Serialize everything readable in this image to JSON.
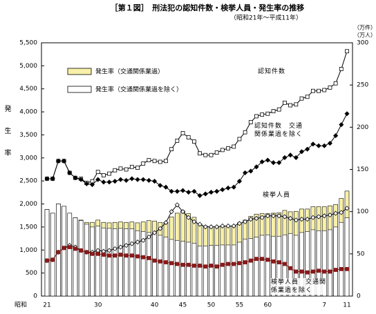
{
  "chart_data": {
    "type": "combo",
    "title": "［第１図］　刑法犯の認知件数・検挙人員・発生率の推移",
    "subtitle": "（昭和21年～平成11年）",
    "y_label": "発生率",
    "y2_labels": [
      "（万件）",
      "（万人）"
    ],
    "x_era_label": "昭和",
    "categories": [
      "21",
      null,
      null,
      null,
      null,
      null,
      null,
      null,
      null,
      "30",
      null,
      null,
      null,
      null,
      null,
      null,
      null,
      null,
      null,
      "40",
      null,
      null,
      null,
      null,
      "45",
      null,
      null,
      null,
      null,
      "50",
      null,
      null,
      null,
      null,
      "55",
      null,
      null,
      null,
      null,
      "60",
      null,
      null,
      null,
      null,
      null,
      null,
      null,
      null,
      null,
      "7",
      null,
      null,
      null,
      "11"
    ],
    "ylim": [
      0,
      5500
    ],
    "yticks": [
      0,
      500,
      {
        "value": 1000,
        "label": "1,000"
      },
      {
        "value": 1500,
        "label": "1,500"
      },
      {
        "value": 2000,
        "label": "2,000"
      },
      {
        "value": 2500,
        "label": "2,500"
      },
      {
        "value": 3000,
        "label": "3,000"
      },
      {
        "value": 3500,
        "label": "3,500"
      },
      {
        "value": 4000,
        "label": "4,000"
      },
      {
        "value": 4500,
        "label": "4,500"
      },
      {
        "value": 5000,
        "label": "5,000"
      },
      {
        "value": 5500,
        "label": "5,500"
      }
    ],
    "y2lim": [
      0,
      300
    ],
    "y2ticks": [
      0,
      50,
      100,
      150,
      200,
      250,
      300
    ],
    "series": [
      {
        "name": "発生率（交通関係業過）",
        "kind": "bar",
        "color": "#f7f0a8",
        "values": [
          1880,
          1800,
          2000,
          1950,
          1800,
          1700,
          1650,
          1600,
          1600,
          1650,
          1600,
          1590,
          1600,
          1610,
          1600,
          1610,
          1590,
          1610,
          1640,
          1630,
          1600,
          1600,
          1720,
          1800,
          1850,
          1790,
          1710,
          1550,
          1520,
          1500,
          1500,
          1510,
          1520,
          1520,
          1590,
          1650,
          1730,
          1780,
          1790,
          1790,
          1800,
          1810,
          1860,
          1830,
          1840,
          1890,
          1890,
          1940,
          1940,
          1940,
          1960,
          1990,
          2120,
          2280
        ]
      },
      {
        "name": "発生率（交通関係業過を除く）",
        "kind": "bar",
        "color": "#ffffff",
        "values": [
          1880,
          1800,
          2000,
          1950,
          1800,
          1700,
          1640,
          1560,
          1500,
          1520,
          1480,
          1470,
          1460,
          1470,
          1460,
          1460,
          1420,
          1400,
          1380,
          1380,
          1320,
          1280,
          1230,
          1210,
          1190,
          1170,
          1150,
          1090,
          1090,
          1100,
          1100,
          1110,
          1110,
          1110,
          1170,
          1240,
          1250,
          1280,
          1320,
          1330,
          1300,
          1300,
          1330,
          1360,
          1320,
          1380,
          1400,
          1440,
          1420,
          1420,
          1440,
          1500,
          1600,
          1700
        ]
      },
      {
        "name": "認知件数",
        "kind": "line",
        "marker": "square-open",
        "color": "#000000",
        "axis": "y2",
        "values": [
          139,
          139,
          160,
          160,
          146,
          140,
          139,
          134,
          136,
          147,
          143,
          145,
          149,
          151,
          150,
          153,
          152,
          157,
          161,
          160,
          159,
          160,
          174,
          184,
          193,
          188,
          183,
          169,
          167,
          167,
          170,
          173,
          175,
          177,
          186,
          194,
          206,
          213,
          215,
          216,
          219,
          221,
          229,
          226,
          227,
          234,
          236,
          243,
          243,
          244,
          247,
          252,
          269,
          290
        ]
      },
      {
        "name": "認知件数　交通関係業過を除く",
        "kind": "line",
        "marker": "diamond-filled",
        "color": "#000000",
        "axis": "y2",
        "values": [
          139,
          139,
          160,
          160,
          146,
          140,
          138,
          133,
          132,
          138,
          135,
          135,
          136,
          138,
          137,
          139,
          138,
          138,
          137,
          136,
          131,
          129,
          124,
          124,
          125,
          123,
          124,
          119,
          121,
          123,
          124,
          126,
          128,
          129,
          136,
          146,
          148,
          153,
          159,
          161,
          158,
          158,
          164,
          167,
          164,
          171,
          174,
          180,
          178,
          178,
          181,
          190,
          203,
          216
        ]
      },
      {
        "name": "検挙人員",
        "kind": "line",
        "marker": "diamond-open",
        "color": "#000000",
        "axis": "y2",
        "values": [
          42,
          43,
          52,
          57,
          60,
          58,
          54,
          52,
          52,
          54,
          53,
          54,
          56,
          58,
          60,
          62,
          64,
          66,
          70,
          75,
          80,
          87,
          100,
          108,
          100,
          93,
          88,
          85,
          82,
          82,
          82,
          83,
          83,
          83,
          86,
          88,
          91,
          92,
          93,
          95,
          95,
          95,
          94,
          92,
          90,
          91,
          91,
          93,
          94,
          95,
          96,
          98,
          99,
          104
        ]
      },
      {
        "name": "検挙人員　交通関係業過を除く",
        "kind": "line",
        "marker": "square-filled",
        "color": "#8b1a1a",
        "axis": "y2",
        "values": [
          42,
          43,
          52,
          57,
          58,
          56,
          54,
          52,
          50,
          50,
          49,
          48,
          48,
          49,
          48,
          48,
          47,
          46,
          45,
          42,
          41,
          40,
          39,
          38,
          37,
          37,
          36,
          36,
          35,
          36,
          35,
          37,
          38,
          38,
          39,
          40,
          42,
          44,
          44,
          43,
          41,
          40,
          38,
          33,
          29,
          29,
          28,
          29,
          30,
          29,
          29,
          31,
          32,
          32
        ]
      }
    ]
  }
}
